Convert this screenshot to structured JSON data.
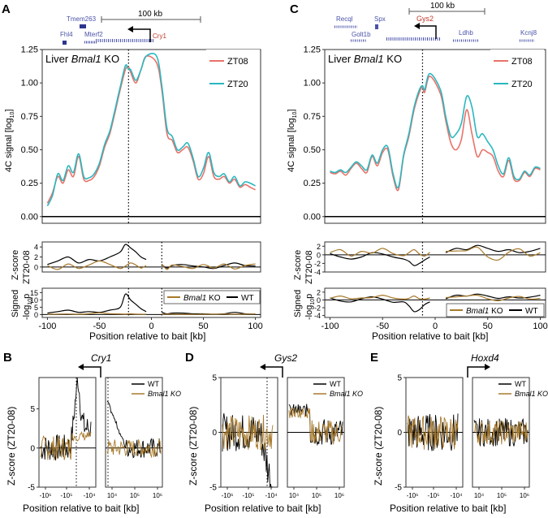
{
  "panels": {
    "A": {
      "letter": "A",
      "gene": "Cry1",
      "neighbors": [
        "Tmem263",
        "Fhl4",
        "Mterf2"
      ],
      "scalebar": "100 kb",
      "condition_prefix": "Liver ",
      "condition_gene": "Bmal1",
      "condition_suffix": " KO"
    },
    "C": {
      "letter": "C",
      "gene": "Gys2",
      "neighbors": [
        "Recql",
        "Spx",
        "Golt1b",
        "Ldhb",
        "Kcnj8"
      ],
      "scalebar": "100 kb",
      "condition_prefix": "Liver ",
      "condition_gene": "Bmal1",
      "condition_suffix": " KO"
    },
    "B": {
      "letter": "B",
      "gene": "Cry1"
    },
    "D": {
      "letter": "D",
      "gene": "Gys2"
    },
    "E": {
      "letter": "E",
      "gene": "Hoxd4"
    }
  },
  "labels": {
    "y4c": "4C signal [log",
    "y4c_sub": "10",
    "y4c_end": "]",
    "yz1": "Z-score",
    "yz2": "ZT20-08",
    "ys1": "Signed",
    "ys2": "-log",
    "ys2_sub": "10",
    "ys2_end": "p",
    "xlabel": "Position relative to bait [kb]",
    "yzscore": "Z-score (ZT20-08)"
  },
  "legend": {
    "zt08": "ZT08",
    "zt20": "ZT20",
    "wt": "WT",
    "ko_gene": "Bmal1",
    "ko_suffix": " KO"
  },
  "colors": {
    "zt08": "#e8736a",
    "zt20": "#2ab7c0",
    "wt": "#000000",
    "ko": "#a87a2c",
    "gene": "#4a52a8",
    "bait": "#c0392b"
  },
  "chart_data": [
    {
      "type": "line",
      "panel": "A",
      "title": "Liver Bmal1 KO",
      "xlabel": "Position relative to bait [kb]",
      "ylabel": "4C signal [log10]",
      "xlim": [
        -105,
        105
      ],
      "ylim": [
        -0.05,
        1.25
      ],
      "yticks": [
        0.0,
        0.25,
        0.5,
        0.75,
        1.0,
        1.25
      ],
      "xticks": [
        -100,
        -50,
        0,
        50,
        100
      ],
      "x": [
        -100,
        -95,
        -90,
        -85,
        -80,
        -75,
        -70,
        -65,
        -60,
        -55,
        -50,
        -45,
        -40,
        -35,
        -30,
        -25,
        -22,
        -20,
        -15,
        -10,
        -5,
        5,
        10,
        15,
        20,
        25,
        30,
        35,
        40,
        45,
        50,
        55,
        60,
        65,
        70,
        75,
        80,
        85,
        90,
        95,
        100
      ],
      "series": [
        {
          "name": "ZT08",
          "values": [
            0.1,
            0.18,
            0.3,
            0.25,
            0.35,
            0.3,
            0.45,
            0.28,
            0.27,
            0.3,
            0.38,
            0.52,
            0.62,
            0.78,
            0.95,
            1.1,
            1.12,
            1.08,
            1.0,
            1.1,
            1.2,
            1.15,
            0.95,
            0.62,
            0.57,
            0.48,
            0.5,
            0.52,
            0.42,
            0.28,
            0.32,
            0.45,
            0.3,
            0.28,
            0.3,
            0.25,
            0.28,
            0.22,
            0.24,
            0.22,
            0.2
          ]
        },
        {
          "name": "ZT20",
          "values": [
            0.08,
            0.16,
            0.32,
            0.27,
            0.38,
            0.33,
            0.47,
            0.3,
            0.29,
            0.32,
            0.4,
            0.54,
            0.64,
            0.8,
            0.97,
            1.13,
            1.1,
            1.1,
            1.02,
            1.1,
            1.2,
            1.2,
            0.98,
            0.66,
            0.6,
            0.5,
            0.52,
            0.55,
            0.44,
            0.3,
            0.36,
            0.48,
            0.33,
            0.3,
            0.32,
            0.26,
            0.3,
            0.23,
            0.26,
            0.25,
            0.23
          ]
        }
      ]
    },
    {
      "type": "line",
      "panel": "A-zscore",
      "ylabel": "Z-score ZT20-08",
      "ylim": [
        -1,
        5
      ],
      "x": [
        -100,
        -90,
        -80,
        -70,
        -60,
        -50,
        -40,
        -30,
        -25,
        -20,
        -15,
        -10,
        -5,
        10,
        15,
        20,
        30,
        40,
        50,
        60,
        70,
        80,
        90,
        100
      ],
      "series": [
        {
          "name": "WT",
          "values": [
            0.5,
            1.2,
            2.0,
            0.8,
            1.5,
            1.2,
            2.0,
            3.0,
            4.5,
            3.8,
            3.0,
            2.0,
            1.5,
            0.5,
            -0.2,
            0.3,
            0.5,
            0.2,
            0.0,
            -0.3,
            0.3,
            0.8,
            0.3,
            0.2
          ]
        },
        {
          "name": "Bmal1 KO",
          "values": [
            0.3,
            -0.5,
            0.6,
            -0.3,
            0.4,
            1.2,
            0.5,
            -0.3,
            0.2,
            0.8,
            0.4,
            -0.2,
            0.3,
            0.6,
            -0.5,
            0.4,
            0.1,
            -0.3,
            0.5,
            -0.2,
            0.6,
            -0.4,
            0.3,
            0.6
          ]
        }
      ]
    },
    {
      "type": "line",
      "panel": "A-signedp",
      "ylabel": "Signed -log10 p",
      "ylim": [
        -2,
        18
      ],
      "yticks": [
        0,
        5,
        10,
        15
      ],
      "x": [
        -100,
        -90,
        -80,
        -70,
        -60,
        -50,
        -40,
        -30,
        -25,
        -20,
        -15,
        -10,
        -5,
        10,
        15,
        20,
        30,
        40,
        50,
        60,
        70,
        80,
        90,
        100
      ],
      "series": [
        {
          "name": "WT",
          "values": [
            1,
            2,
            3,
            1.5,
            2,
            1.5,
            3,
            5,
            14,
            10,
            7,
            4,
            2,
            1.5,
            0.5,
            1,
            1,
            0.5,
            0.5,
            0.2,
            0.5,
            1.5,
            0.5,
            0.3
          ]
        },
        {
          "name": "Bmal1 KO",
          "values": [
            0.2,
            0.3,
            0.4,
            0.2,
            0.5,
            1.2,
            0.6,
            0.4,
            0.3,
            0.5,
            0.3,
            0.2,
            0.2,
            0.3,
            0.2,
            0.3,
            0.2,
            0.1,
            0.3,
            0.2,
            0.4,
            0.2,
            0.3,
            0.4
          ]
        }
      ]
    },
    {
      "type": "line",
      "panel": "C",
      "title": "Liver Bmal1 KO",
      "xlabel": "Position relative to bait [kb]",
      "ylabel": "4C signal [log10]",
      "xlim": [
        -105,
        105
      ],
      "ylim": [
        -0.05,
        1.25
      ],
      "yticks": [
        0.0,
        0.25,
        0.5,
        0.75,
        1.0,
        1.25
      ],
      "xticks": [
        -100,
        -50,
        0,
        50,
        100
      ],
      "x": [
        -100,
        -95,
        -90,
        -85,
        -80,
        -75,
        -70,
        -65,
        -60,
        -55,
        -50,
        -45,
        -40,
        -35,
        -30,
        -25,
        -20,
        -15,
        -12,
        -10,
        -5,
        5,
        10,
        15,
        20,
        25,
        30,
        35,
        40,
        45,
        50,
        55,
        60,
        65,
        70,
        75,
        80,
        85,
        90,
        95,
        100
      ],
      "series": [
        {
          "name": "ZT08",
          "values": [
            0.33,
            0.32,
            0.34,
            0.31,
            0.36,
            0.4,
            0.36,
            0.33,
            0.45,
            0.38,
            0.48,
            0.5,
            0.3,
            0.2,
            0.45,
            0.6,
            0.8,
            0.93,
            0.97,
            0.93,
            1.05,
            0.92,
            0.72,
            0.55,
            0.5,
            0.58,
            0.8,
            0.62,
            0.45,
            0.5,
            0.48,
            0.45,
            0.34,
            0.3,
            0.42,
            0.28,
            0.27,
            0.33,
            0.3,
            0.36,
            0.35
          ]
        },
        {
          "name": "ZT20",
          "values": [
            0.34,
            0.33,
            0.35,
            0.33,
            0.37,
            0.41,
            0.38,
            0.35,
            0.46,
            0.4,
            0.5,
            0.52,
            0.32,
            0.22,
            0.46,
            0.62,
            0.82,
            0.95,
            0.98,
            0.95,
            1.07,
            0.95,
            0.75,
            0.6,
            0.62,
            0.7,
            0.9,
            0.82,
            0.6,
            0.62,
            0.56,
            0.5,
            0.38,
            0.32,
            0.44,
            0.3,
            0.28,
            0.34,
            0.31,
            0.37,
            0.36
          ]
        }
      ]
    },
    {
      "type": "line",
      "panel": "C-zscore",
      "ylabel": "Z-score ZT20-08",
      "ylim": [
        -4,
        3
      ],
      "yticks": [
        -4,
        -2,
        0,
        2
      ],
      "x": [
        -100,
        -90,
        -80,
        -70,
        -60,
        -50,
        -40,
        -30,
        -25,
        -20,
        -15,
        -10,
        -5,
        10,
        20,
        30,
        40,
        50,
        60,
        70,
        80,
        90,
        100
      ],
      "series": [
        {
          "name": "WT",
          "values": [
            0.3,
            -0.5,
            -1,
            -0.5,
            0.5,
            0.2,
            -0.5,
            -1,
            -1.5,
            -2.5,
            -2,
            -1.2,
            -0.5,
            0.5,
            1.5,
            1.2,
            2.2,
            1.5,
            0.8,
            1.2,
            0.5,
            0.8,
            1.5
          ]
        },
        {
          "name": "Bmal1 KO",
          "values": [
            0.5,
            1.2,
            -0.3,
            0.8,
            0.4,
            1.5,
            0.3,
            -0.2,
            0.5,
            1.2,
            0.2,
            -0.3,
            0.6,
            0.8,
            0.9,
            1.0,
            1.8,
            -0.5,
            -1.2,
            0.6,
            1.4,
            -0.3,
            0.5
          ]
        }
      ]
    },
    {
      "type": "line",
      "panel": "C-signedp",
      "ylabel": "Signed -log10 p",
      "ylim": [
        -4.5,
        3
      ],
      "yticks": [
        -4,
        -2,
        0,
        2
      ],
      "x": [
        -100,
        -90,
        -80,
        -70,
        -60,
        -50,
        -40,
        -30,
        -25,
        -20,
        -15,
        -10,
        -5,
        10,
        20,
        30,
        40,
        50,
        60,
        70,
        80,
        90,
        100
      ],
      "series": [
        {
          "name": "WT",
          "values": [
            0.5,
            -0.3,
            -0.5,
            0.3,
            0.8,
            0.2,
            -0.6,
            -0.5,
            -1.5,
            -3,
            -2.5,
            -1.2,
            -0.5,
            0.3,
            1.2,
            1.0,
            1.5,
            1.0,
            0.4,
            0.8,
            0.5,
            0.7,
            1.2
          ]
        },
        {
          "name": "Bmal1 KO",
          "values": [
            0.4,
            1.0,
            0.3,
            0.5,
            0.6,
            1.2,
            0.5,
            0.2,
            0.4,
            1.0,
            0.3,
            0.2,
            0.5,
            0.6,
            0.8,
            1.0,
            1.2,
            0.3,
            -0.2,
            0.5,
            0.9,
            0.2,
            0.4
          ]
        }
      ]
    },
    {
      "type": "line",
      "panel": "B",
      "ylabel": "Z-score (ZT20-08)",
      "xlabel": "Position relative to bait [kb]",
      "ylim": [
        -5,
        9
      ],
      "yticks": [
        -5,
        0,
        5
      ],
      "xticks_left": [
        "-10⁶",
        "-10⁵",
        "-10⁴"
      ],
      "xticks_right": [
        "10⁴",
        "10⁵",
        "10⁶"
      ],
      "series": [
        {
          "name": "WT"
        },
        {
          "name": "Bmal1 KO"
        }
      ]
    },
    {
      "type": "line",
      "panel": "D",
      "ylabel": "Z-score (ZT20-08)",
      "xlabel": "Position relative to bait [kb]",
      "ylim": [
        -5,
        5
      ],
      "yticks": [
        -5,
        0,
        5
      ],
      "xticks_left": [
        "-10⁶",
        "-10⁵",
        "-10⁴"
      ],
      "xticks_right": [
        "10⁴",
        "10⁵",
        "10⁶"
      ],
      "series": [
        {
          "name": "WT"
        },
        {
          "name": "Bmal1 KO"
        }
      ]
    },
    {
      "type": "line",
      "panel": "E",
      "ylabel": "Z-score (ZT20-08)",
      "xlabel": "Position relative to bait [kb]",
      "ylim": [
        -5,
        5
      ],
      "yticks": [
        -5,
        0,
        5
      ],
      "xticks_left": [
        "-10⁶",
        "-10⁵",
        "-10⁴"
      ],
      "xticks_right": [
        "10⁴",
        "10⁵",
        "10⁶"
      ],
      "series": [
        {
          "name": "WT"
        },
        {
          "name": "Bmal1 KO"
        }
      ]
    }
  ]
}
